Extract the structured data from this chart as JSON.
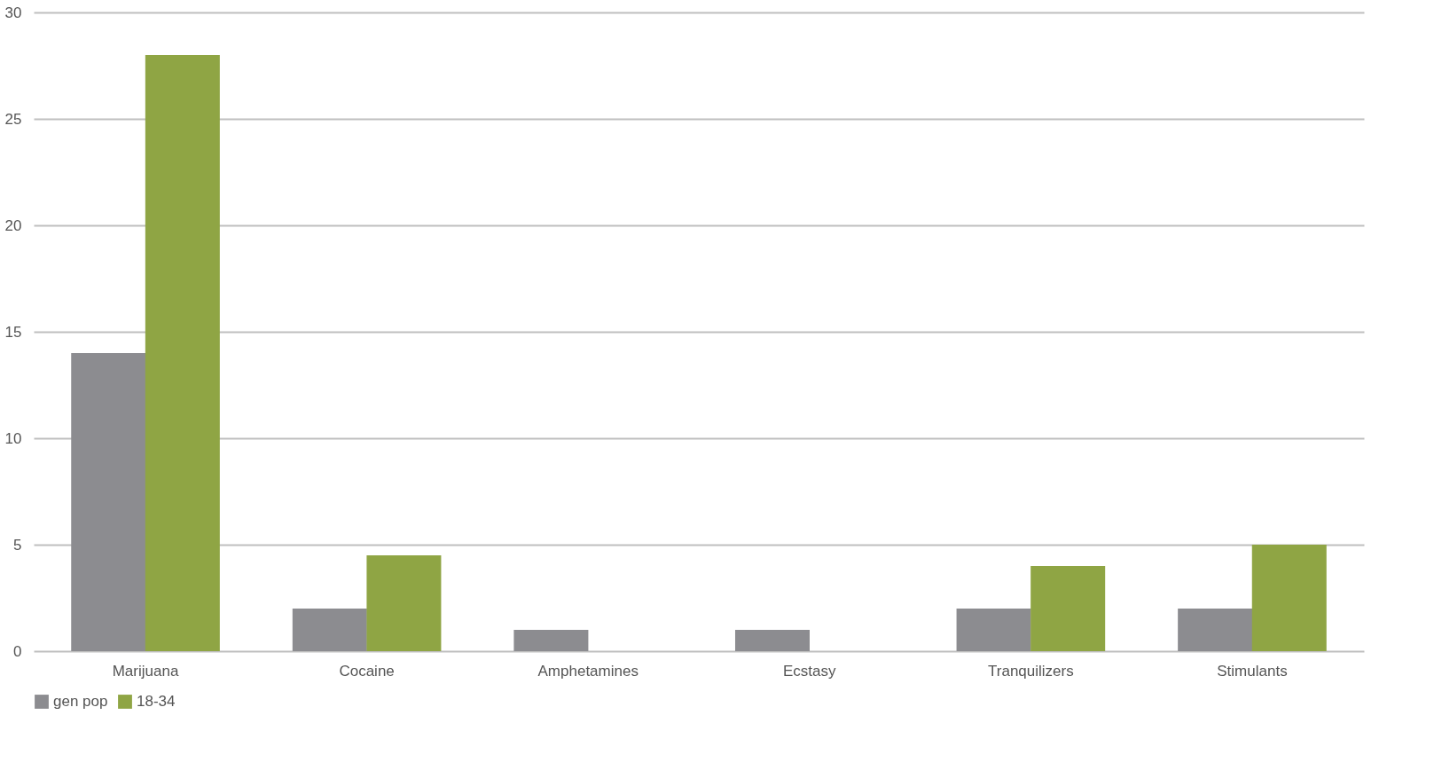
{
  "chart_data": {
    "type": "bar",
    "categories": [
      "Marijuana",
      "Cocaine",
      "Amphetamines",
      "Ecstasy",
      "Tranquilizers",
      "Stimulants"
    ],
    "series": [
      {
        "name": "gen pop",
        "color": "#8c8c90",
        "values": [
          14,
          2,
          1,
          1,
          2,
          2
        ]
      },
      {
        "name": "18-34",
        "color": "#8fa544",
        "values": [
          28,
          4.5,
          0,
          0,
          4,
          5
        ]
      }
    ],
    "ylim": [
      0,
      30
    ],
    "yticks": [
      0,
      5,
      10,
      15,
      20,
      25,
      30
    ],
    "grid": "y",
    "legend": "bottom"
  }
}
